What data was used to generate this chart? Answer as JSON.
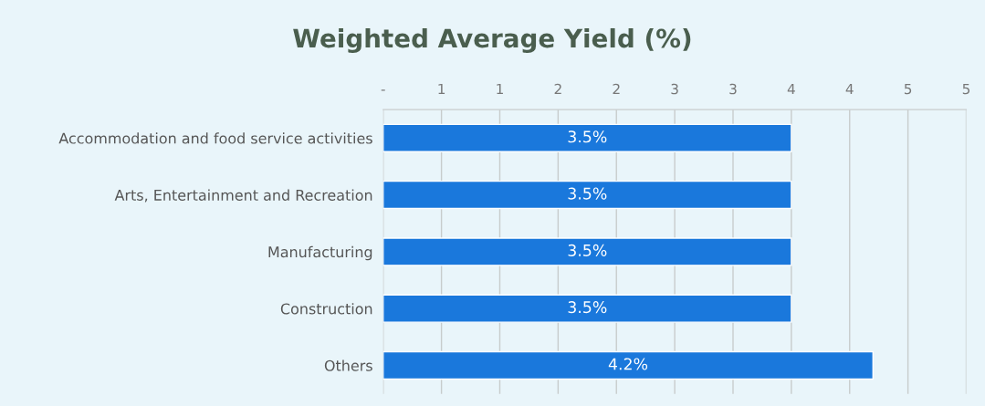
{
  "chart_data": {
    "type": "bar",
    "orientation": "horizontal",
    "title": "Weighted Average Yield (%)",
    "categories": [
      "Accommodation and food service activities",
      "Arts, Entertainment and Recreation",
      "Manufacturing",
      "Construction",
      "Others"
    ],
    "values": [
      3.5,
      3.5,
      3.5,
      3.5,
      4.2
    ],
    "value_labels": [
      "3.5%",
      "3.5%",
      "3.5%",
      "3.5%",
      "4.2%"
    ],
    "color": "#1a78dc",
    "xlim": [
      0,
      5
    ],
    "xticks": [
      {
        "value": 0,
        "label": "-"
      },
      {
        "value": 0.5,
        "label": "1"
      },
      {
        "value": 1,
        "label": "1"
      },
      {
        "value": 1.5,
        "label": "2"
      },
      {
        "value": 2,
        "label": "2"
      },
      {
        "value": 2.5,
        "label": "3"
      },
      {
        "value": 3,
        "label": "3"
      },
      {
        "value": 3.5,
        "label": "4"
      },
      {
        "value": 4,
        "label": "4"
      },
      {
        "value": 4.5,
        "label": "5"
      },
      {
        "value": 5,
        "label": "5"
      }
    ],
    "grid": "x"
  }
}
